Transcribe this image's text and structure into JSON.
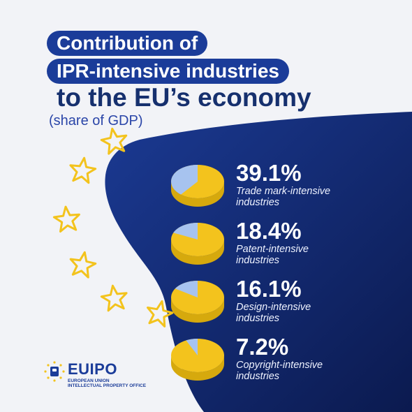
{
  "title": {
    "line1": "Contribution of",
    "line2": "IPR-intensive industries",
    "line3": "to the EU’s economy",
    "subtitle": "(share of GDP)"
  },
  "chart_data": {
    "type": "pie",
    "unit": "%",
    "items": [
      {
        "value": 39.1,
        "value_label": "39.1%",
        "label_line1": "Trade mark-intensive",
        "label_line2": "industries"
      },
      {
        "value": 18.4,
        "value_label": "18.4%",
        "label_line1": "Patent-intensive",
        "label_line2": "industries"
      },
      {
        "value": 16.1,
        "value_label": "16.1%",
        "label_line1": "Design-intensive",
        "label_line2": "industries"
      },
      {
        "value": 7.2,
        "value_label": "7.2%",
        "label_line1": "Copyright-intensive",
        "label_line2": "industries"
      }
    ]
  },
  "logo": {
    "name": "EUIPO",
    "sub1": "EUROPEAN UNION",
    "sub2": "INTELLECTUAL PROPERTY OFFICE"
  },
  "colors": {
    "background": "#f2f3f7",
    "blob_dark": "#0b1a4f",
    "blob_light": "#1b3a93",
    "pill": "#1b3c99",
    "pie_share": "#a7c3ef",
    "pie_rest": "#f3c31d",
    "pie_rest_side": "#d6a90d",
    "star": "#f3c31d"
  }
}
